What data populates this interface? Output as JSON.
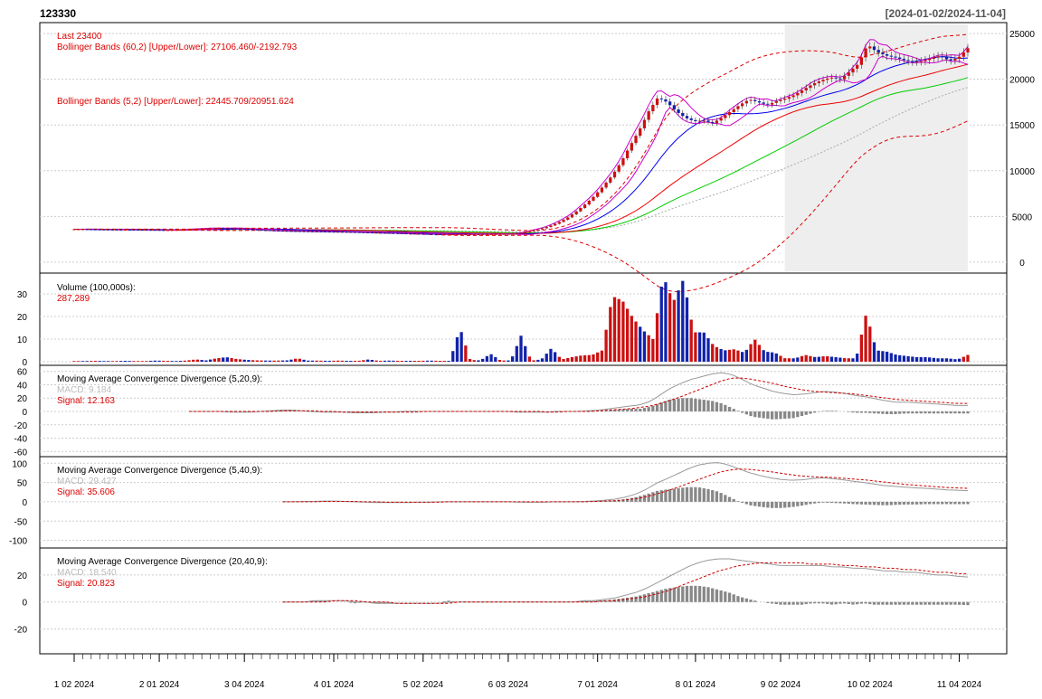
{
  "symbol": "123330",
  "date_range": "[2024-01-02/2024-11-04]",
  "colors": {
    "up": "#cc1111",
    "down": "#1122aa",
    "annotation": "#dd0000",
    "macd_line": "#999999",
    "signal_line": "#cc0000",
    "histogram": "#888888",
    "bb60": "#dd0000",
    "bb5": "#cc00cc",
    "ma_blue": "#0000ee",
    "ma_red": "#ee0000",
    "ma_green": "#00cc00",
    "ma_gray": "#aaaaaa",
    "grid": "#cccccc"
  },
  "chart_data": [
    {
      "type": "candlestick",
      "panel": "price",
      "annotations": [
        "Last 23400",
        "Bollinger Bands (60,2) [Upper/Lower]: 27106.460/-2192.793",
        "Bollinger Bands (5,2) [Upper/Lower]: 22445.709/20951.624"
      ],
      "ylim": [
        -1000,
        26000
      ],
      "y_ticks": [
        0,
        5000,
        10000,
        15000,
        20000,
        25000
      ],
      "grid": true,
      "approx_close_series": [
        3600,
        3600,
        3580,
        3570,
        3560,
        3550,
        3550,
        3540,
        3530,
        3520,
        3500,
        3520,
        3550,
        3600,
        3650,
        3700,
        3720,
        3680,
        3640,
        3600,
        3550,
        3500,
        3450,
        3420,
        3400,
        3380,
        3360,
        3350,
        3330,
        3320,
        3300,
        3280,
        3250,
        3220,
        3200,
        3180,
        3150,
        3120,
        3100,
        3080,
        3050,
        3050,
        3050,
        3050,
        3050,
        3060,
        3070,
        3080,
        3100,
        3200,
        3400,
        3600,
        3900,
        4300,
        4800,
        5500,
        6300,
        7200,
        8300,
        9500,
        11000,
        12800,
        14500,
        16500,
        18000,
        17500,
        16500,
        15800,
        15400,
        15500,
        15200,
        15800,
        16500,
        17200,
        17800,
        17500,
        17200,
        17600,
        17900,
        18300,
        18900,
        19500,
        19900,
        20200,
        20000,
        20800,
        21700,
        23800,
        23000,
        22600,
        22400,
        22100,
        21900,
        22000,
        22300,
        22600,
        22000,
        22400,
        23400
      ],
      "legend_placement": "top-left"
    },
    {
      "type": "bar",
      "panel": "volume",
      "title": "Volume (100,000s):",
      "last_value": "287,289",
      "ylim": [
        0,
        38
      ],
      "y_ticks": [
        0,
        10,
        20,
        30
      ],
      "grid": true,
      "approx_values": [
        0.3,
        0.3,
        0.4,
        0.3,
        0.3,
        0.4,
        0.3,
        0.3,
        0.5,
        0.4,
        0.3,
        0.5,
        1.0,
        0.6,
        1.5,
        2.0,
        1.2,
        0.8,
        0.6,
        0.5,
        0.5,
        0.6,
        1.5,
        0.5,
        0.5,
        0.4,
        0.5,
        0.4,
        0.4,
        1.0,
        0.4,
        0.5,
        0.4,
        0.4,
        0.4,
        0.5,
        0.4,
        0.4,
        15.0,
        0.8,
        0.6,
        3.5,
        0.5,
        0.6,
        11.5,
        0.5,
        1.0,
        6.0,
        1.0,
        2.0,
        2.8,
        3.0,
        5.0,
        29.0,
        27.0,
        19.5,
        14.0,
        10.0,
        38.0,
        26.5,
        36.5,
        13.0,
        13.0,
        7.0,
        5.0,
        5.5,
        4.0,
        10.0,
        4.5,
        4.0,
        1.5,
        1.5,
        3.0,
        2.0,
        2.5,
        2.0,
        1.5,
        1.5,
        21.5,
        5.0,
        4.5,
        3.0,
        2.5,
        2.0,
        2.0,
        1.5,
        1.5,
        1.0,
        3.0
      ],
      "approx_up": [
        true,
        false,
        true,
        false,
        true,
        false,
        true,
        true,
        false,
        true,
        false,
        true,
        true,
        false,
        true,
        false,
        true,
        false,
        true,
        false,
        true,
        false,
        true,
        false,
        true,
        false,
        true,
        false,
        true,
        false,
        true,
        false,
        true,
        false,
        true,
        false,
        true,
        false,
        false,
        true,
        false,
        false,
        true,
        false,
        false,
        true,
        false,
        false,
        true,
        true,
        true,
        true,
        true,
        true,
        true,
        true,
        false,
        true,
        false,
        true,
        false,
        true,
        false,
        true,
        false,
        true,
        false,
        true,
        false,
        false,
        true,
        false,
        true,
        false,
        true,
        false,
        true,
        false,
        true,
        false,
        false,
        false,
        false,
        false,
        false,
        false,
        false,
        false,
        true
      ]
    },
    {
      "type": "line",
      "panel": "macd",
      "title": "Moving Average Convergence Divergence (5,20,9):",
      "macd_label": "MACD: 9.184",
      "signal_label": "Signal: 12.163",
      "ylim": [
        -65,
        65
      ],
      "y_ticks": [
        -60,
        -40,
        -20,
        0,
        20,
        40,
        60
      ],
      "grid": true,
      "start_index": 13,
      "approx_macd": [
        0,
        0,
        0,
        0,
        -1,
        -1,
        -1,
        0,
        1,
        2,
        2,
        1,
        0,
        -1,
        -1,
        -1,
        -2,
        -2,
        -2,
        -1,
        -1,
        0,
        0,
        0,
        0,
        0,
        0,
        0,
        0,
        0,
        0,
        0,
        -1,
        -1,
        -1,
        -1,
        0,
        0,
        0,
        1,
        2,
        4,
        6,
        8,
        10,
        15,
        25,
        35,
        42,
        48,
        52,
        56,
        58,
        55,
        48,
        40,
        35,
        30,
        27,
        25,
        26,
        28,
        30,
        29,
        27,
        24,
        22,
        19,
        16,
        14,
        14,
        13,
        12,
        11,
        10,
        9,
        9
      ],
      "approx_signal": [
        0,
        0,
        0,
        0,
        0,
        0,
        0,
        0,
        0,
        1,
        1,
        1,
        1,
        0,
        0,
        -1,
        -1,
        -1,
        -1,
        -1,
        -1,
        -1,
        -1,
        0,
        0,
        0,
        0,
        0,
        0,
        0,
        0,
        0,
        0,
        0,
        0,
        -1,
        -1,
        0,
        0,
        0,
        1,
        2,
        3,
        4,
        6,
        8,
        12,
        17,
        22,
        28,
        34,
        40,
        46,
        50,
        50,
        48,
        45,
        42,
        38,
        35,
        32,
        30,
        29,
        28,
        27,
        26,
        24,
        22,
        20,
        18,
        17,
        16,
        15,
        14,
        13,
        12,
        12
      ]
    },
    {
      "type": "line",
      "panel": "macd",
      "title": "Moving Average Convergence Divergence (5,40,9):",
      "macd_label": "MACD: 29.427",
      "signal_label": "Signal: 35.606",
      "ylim": [
        -115,
        110
      ],
      "y_ticks": [
        -100,
        -50,
        0,
        50,
        100
      ],
      "grid": true,
      "start_index": 23,
      "approx_macd": [
        0,
        0,
        1,
        1,
        2,
        2,
        1,
        0,
        -1,
        -2,
        -2,
        -2,
        -2,
        -1,
        -1,
        0,
        0,
        0,
        0,
        0,
        0,
        0,
        0,
        -1,
        -1,
        -1,
        0,
        0,
        0,
        1,
        2,
        4,
        7,
        12,
        20,
        32,
        48,
        60,
        72,
        85,
        95,
        100,
        102,
        95,
        85,
        75,
        68,
        62,
        58,
        56,
        57,
        60,
        62,
        60,
        57,
        53,
        50,
        46,
        42,
        40,
        38,
        36,
        35,
        33,
        31,
        30,
        29
      ],
      "approx_signal": [
        0,
        0,
        0,
        0,
        1,
        1,
        1,
        1,
        0,
        0,
        -1,
        -1,
        -1,
        -1,
        -1,
        -1,
        0,
        0,
        0,
        0,
        0,
        0,
        0,
        0,
        0,
        0,
        0,
        0,
        0,
        0,
        1,
        2,
        3,
        5,
        8,
        13,
        20,
        28,
        37,
        47,
        57,
        67,
        76,
        82,
        85,
        84,
        81,
        78,
        74,
        70,
        67,
        65,
        64,
        63,
        61,
        59,
        57,
        54,
        51,
        48,
        45,
        43,
        41,
        39,
        37,
        36,
        35
      ]
    },
    {
      "type": "line",
      "panel": "macd",
      "title": "Moving Average Convergence Divergence (20,40,9):",
      "macd_label": "MACD: 18.540",
      "signal_label": "Signal: 20.823",
      "ylim": [
        -37,
        38
      ],
      "y_ticks": [
        -20,
        0,
        20
      ],
      "grid": true,
      "start_index": 23,
      "approx_macd": [
        0,
        0,
        0,
        1,
        1,
        1,
        1,
        0,
        0,
        -1,
        -1,
        -1,
        -1,
        -1,
        -1,
        -1,
        0,
        0,
        0,
        0,
        0,
        0,
        0,
        0,
        0,
        0,
        0,
        0,
        0,
        1,
        1,
        2,
        3,
        5,
        7,
        10,
        14,
        18,
        22,
        26,
        29,
        31,
        32,
        32,
        31,
        30,
        29,
        28,
        27,
        27,
        27,
        27,
        27,
        26,
        26,
        25,
        25,
        24,
        23,
        23,
        22,
        22,
        21,
        20,
        20,
        19,
        18.5
      ],
      "approx_signal": [
        0,
        0,
        0,
        0,
        0,
        1,
        1,
        1,
        0,
        0,
        0,
        -1,
        -1,
        -1,
        -1,
        -1,
        -1,
        0,
        0,
        0,
        0,
        0,
        0,
        0,
        0,
        0,
        0,
        0,
        0,
        0,
        0,
        1,
        1,
        2,
        3,
        4,
        6,
        8,
        11,
        14,
        17,
        20,
        23,
        25,
        27,
        28,
        29,
        29,
        29,
        29,
        29,
        28,
        28,
        28,
        27,
        27,
        26,
        26,
        25,
        25,
        24,
        24,
        23,
        22,
        22,
        21,
        20.8
      ]
    }
  ],
  "x_axis": {
    "labels": [
      "1 02 2024",
      "2 01 2024",
      "3 04 2024",
      "4 01 2024",
      "5 02 2024",
      "6 03 2024",
      "7 01 2024",
      "8 01 2024",
      "9 02 2024",
      "10 02 2024",
      "11 04 2024"
    ],
    "label_positions": [
      0,
      20,
      40,
      61,
      82,
      102,
      123,
      146,
      166,
      187,
      208
    ],
    "total_points": 211
  }
}
